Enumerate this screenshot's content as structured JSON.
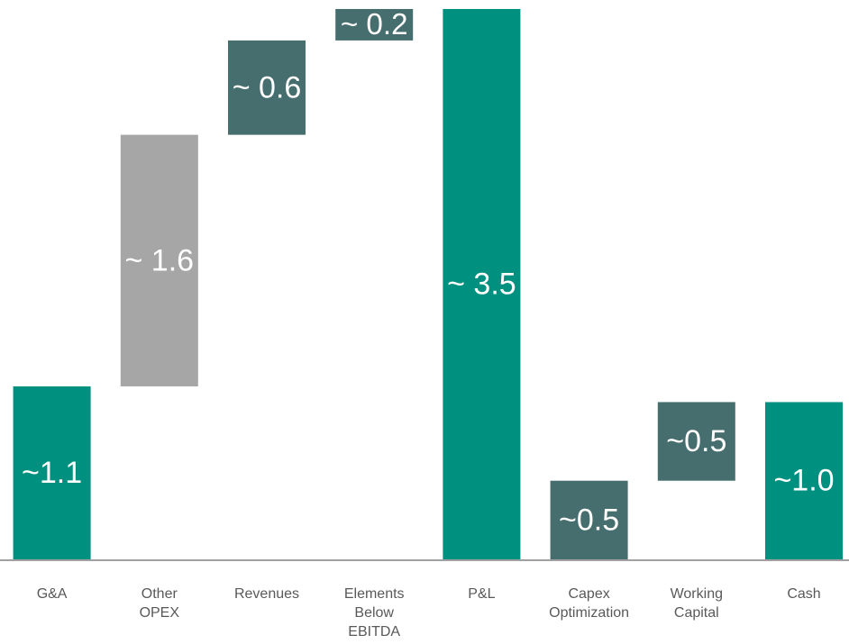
{
  "chart_data": {
    "type": "bar",
    "subtype": "waterfall",
    "categories": [
      [
        "G&A"
      ],
      [
        "Other",
        "OPEX"
      ],
      [
        "Revenues"
      ],
      [
        "Elements",
        "Below",
        "EBITDA"
      ],
      [
        "P&L"
      ],
      [
        "Capex",
        "Optimization"
      ],
      [
        "Working",
        "Capital"
      ],
      [
        "Cash"
      ]
    ],
    "bars": [
      {
        "kind": "total",
        "start": 0,
        "end": 1.1,
        "label": "~1.1",
        "color": "#009080"
      },
      {
        "kind": "increase",
        "start": 1.1,
        "end": 2.7,
        "label": "~ 1.6",
        "color": "#A6A6A6"
      },
      {
        "kind": "increase",
        "start": 2.7,
        "end": 3.3,
        "label": "~ 0.6",
        "color": "#476E6E"
      },
      {
        "kind": "increase",
        "start": 3.3,
        "end": 3.5,
        "label": "~ 0.2",
        "color": "#476E6E"
      },
      {
        "kind": "total",
        "start": 0,
        "end": 3.5,
        "label": "~ 3.5",
        "color": "#009080"
      },
      {
        "kind": "decrease",
        "start": 0.5,
        "end": 0,
        "label": "~0.5",
        "color": "#476E6E"
      },
      {
        "kind": "decrease",
        "start": 1.0,
        "end": 0.5,
        "label": "~0.5",
        "color": "#476E6E"
      },
      {
        "kind": "total",
        "start": 0,
        "end": 1.0,
        "label": "~1.0",
        "color": "#009080"
      }
    ],
    "ylim": [
      0,
      3.5
    ],
    "title": "",
    "xlabel": "",
    "ylabel": "",
    "grid": false,
    "axis_color": "#808080"
  }
}
